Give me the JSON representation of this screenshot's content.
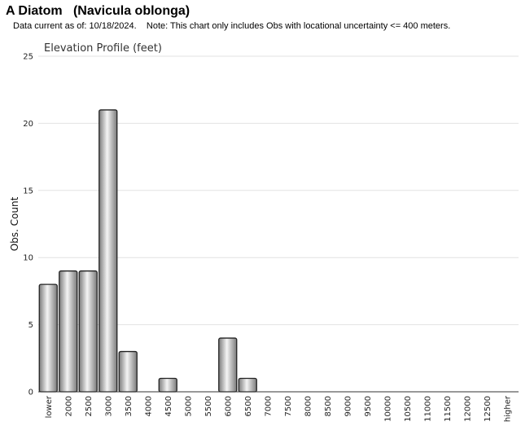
{
  "header": {
    "title": "A Diatom   (Navicula oblonga)",
    "note": "Data current as of: 10/18/2024.    Note: This chart only includes Obs with locational uncertainty <= 400 meters."
  },
  "chart_data": {
    "type": "bar",
    "title": "Elevation Profile (feet)",
    "ylabel": "Obs. Count",
    "xlabel": "",
    "ylim": [
      0,
      25
    ],
    "yticks": [
      0,
      5,
      10,
      15,
      20,
      25
    ],
    "grid": true,
    "categories": [
      "lower",
      "2000",
      "2500",
      "3000",
      "3500",
      "4000",
      "4500",
      "5000",
      "5500",
      "6000",
      "6500",
      "7000",
      "7500",
      "8000",
      "8500",
      "9000",
      "9500",
      "10000",
      "10500",
      "11000",
      "11500",
      "12000",
      "12500",
      "higher"
    ],
    "values": [
      8,
      9,
      9,
      21,
      3,
      0,
      1,
      0,
      0,
      4,
      1,
      0,
      0,
      0,
      0,
      0,
      0,
      0,
      0,
      0,
      0,
      0,
      0,
      0
    ],
    "colors": {
      "bar_light": "#f4f4f4",
      "bar_dark": "#7a7a7a",
      "bar_stroke": "#222222",
      "grid": "#e2e2e2"
    }
  }
}
